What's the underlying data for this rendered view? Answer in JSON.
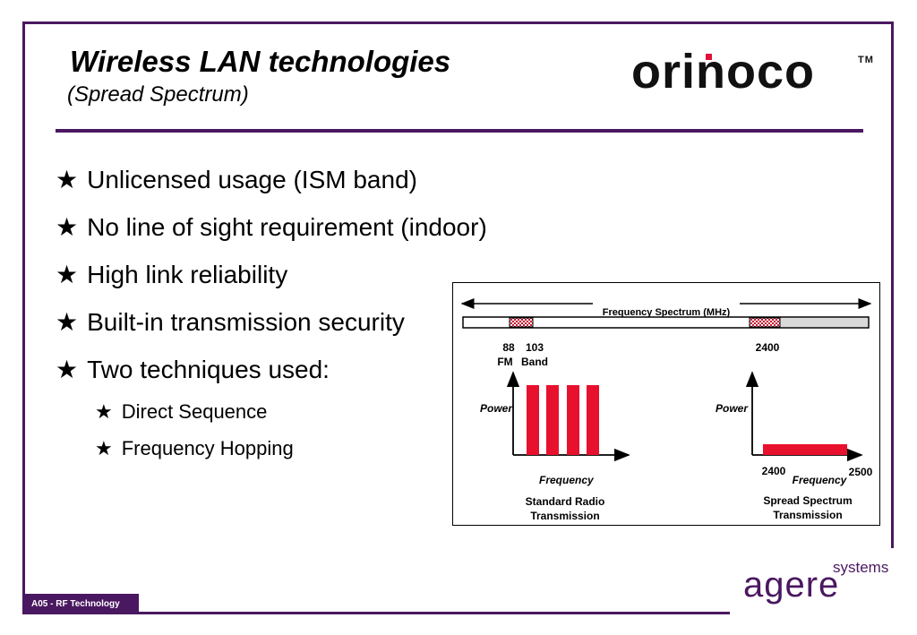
{
  "slide": {
    "title": "Wireless LAN technologies",
    "subtitle": "(Spread Spectrum)",
    "logo_top": "orinoco",
    "logo_top_tm": "TM",
    "footer_label": "A05 -  RF Technology",
    "logo_bottom_main": "agere",
    "logo_bottom_sub": "systems"
  },
  "bullets": [
    {
      "level": 1,
      "text": "Unlicensed usage (ISM band)"
    },
    {
      "level": 1,
      "text": "No line of sight requirement (indoor)"
    },
    {
      "level": 1,
      "text": "High link reliability"
    },
    {
      "level": 1,
      "text": "Built-in transmission security"
    },
    {
      "level": 1,
      "text": "Two techniques used:"
    },
    {
      "level": 2,
      "text": "Direct Sequence"
    },
    {
      "level": 2,
      "text": "Frequency Hopping"
    }
  ],
  "bullet_glyph": "★",
  "diagram": {
    "spectrum_label": "Frequency Spectrum (MHz)",
    "mark_88": "88",
    "mark_fm": "FM",
    "mark_103": "103",
    "mark_band": "Band",
    "mark_2400_top": "2400",
    "left": {
      "y_axis": "Power",
      "x_axis": "Frequency",
      "caption_line1": "Standard Radio",
      "caption_line2": "Transmission"
    },
    "right": {
      "y_axis": "Power",
      "x_axis": "Frequency",
      "x_start": "2400",
      "x_end": "2500",
      "caption_line1": "Spread Spectrum",
      "caption_line2": "Transmission"
    },
    "colors": {
      "signal": "#e8112d",
      "hatch": "#c8102e",
      "band_fill": "#d9d9d9"
    }
  }
}
